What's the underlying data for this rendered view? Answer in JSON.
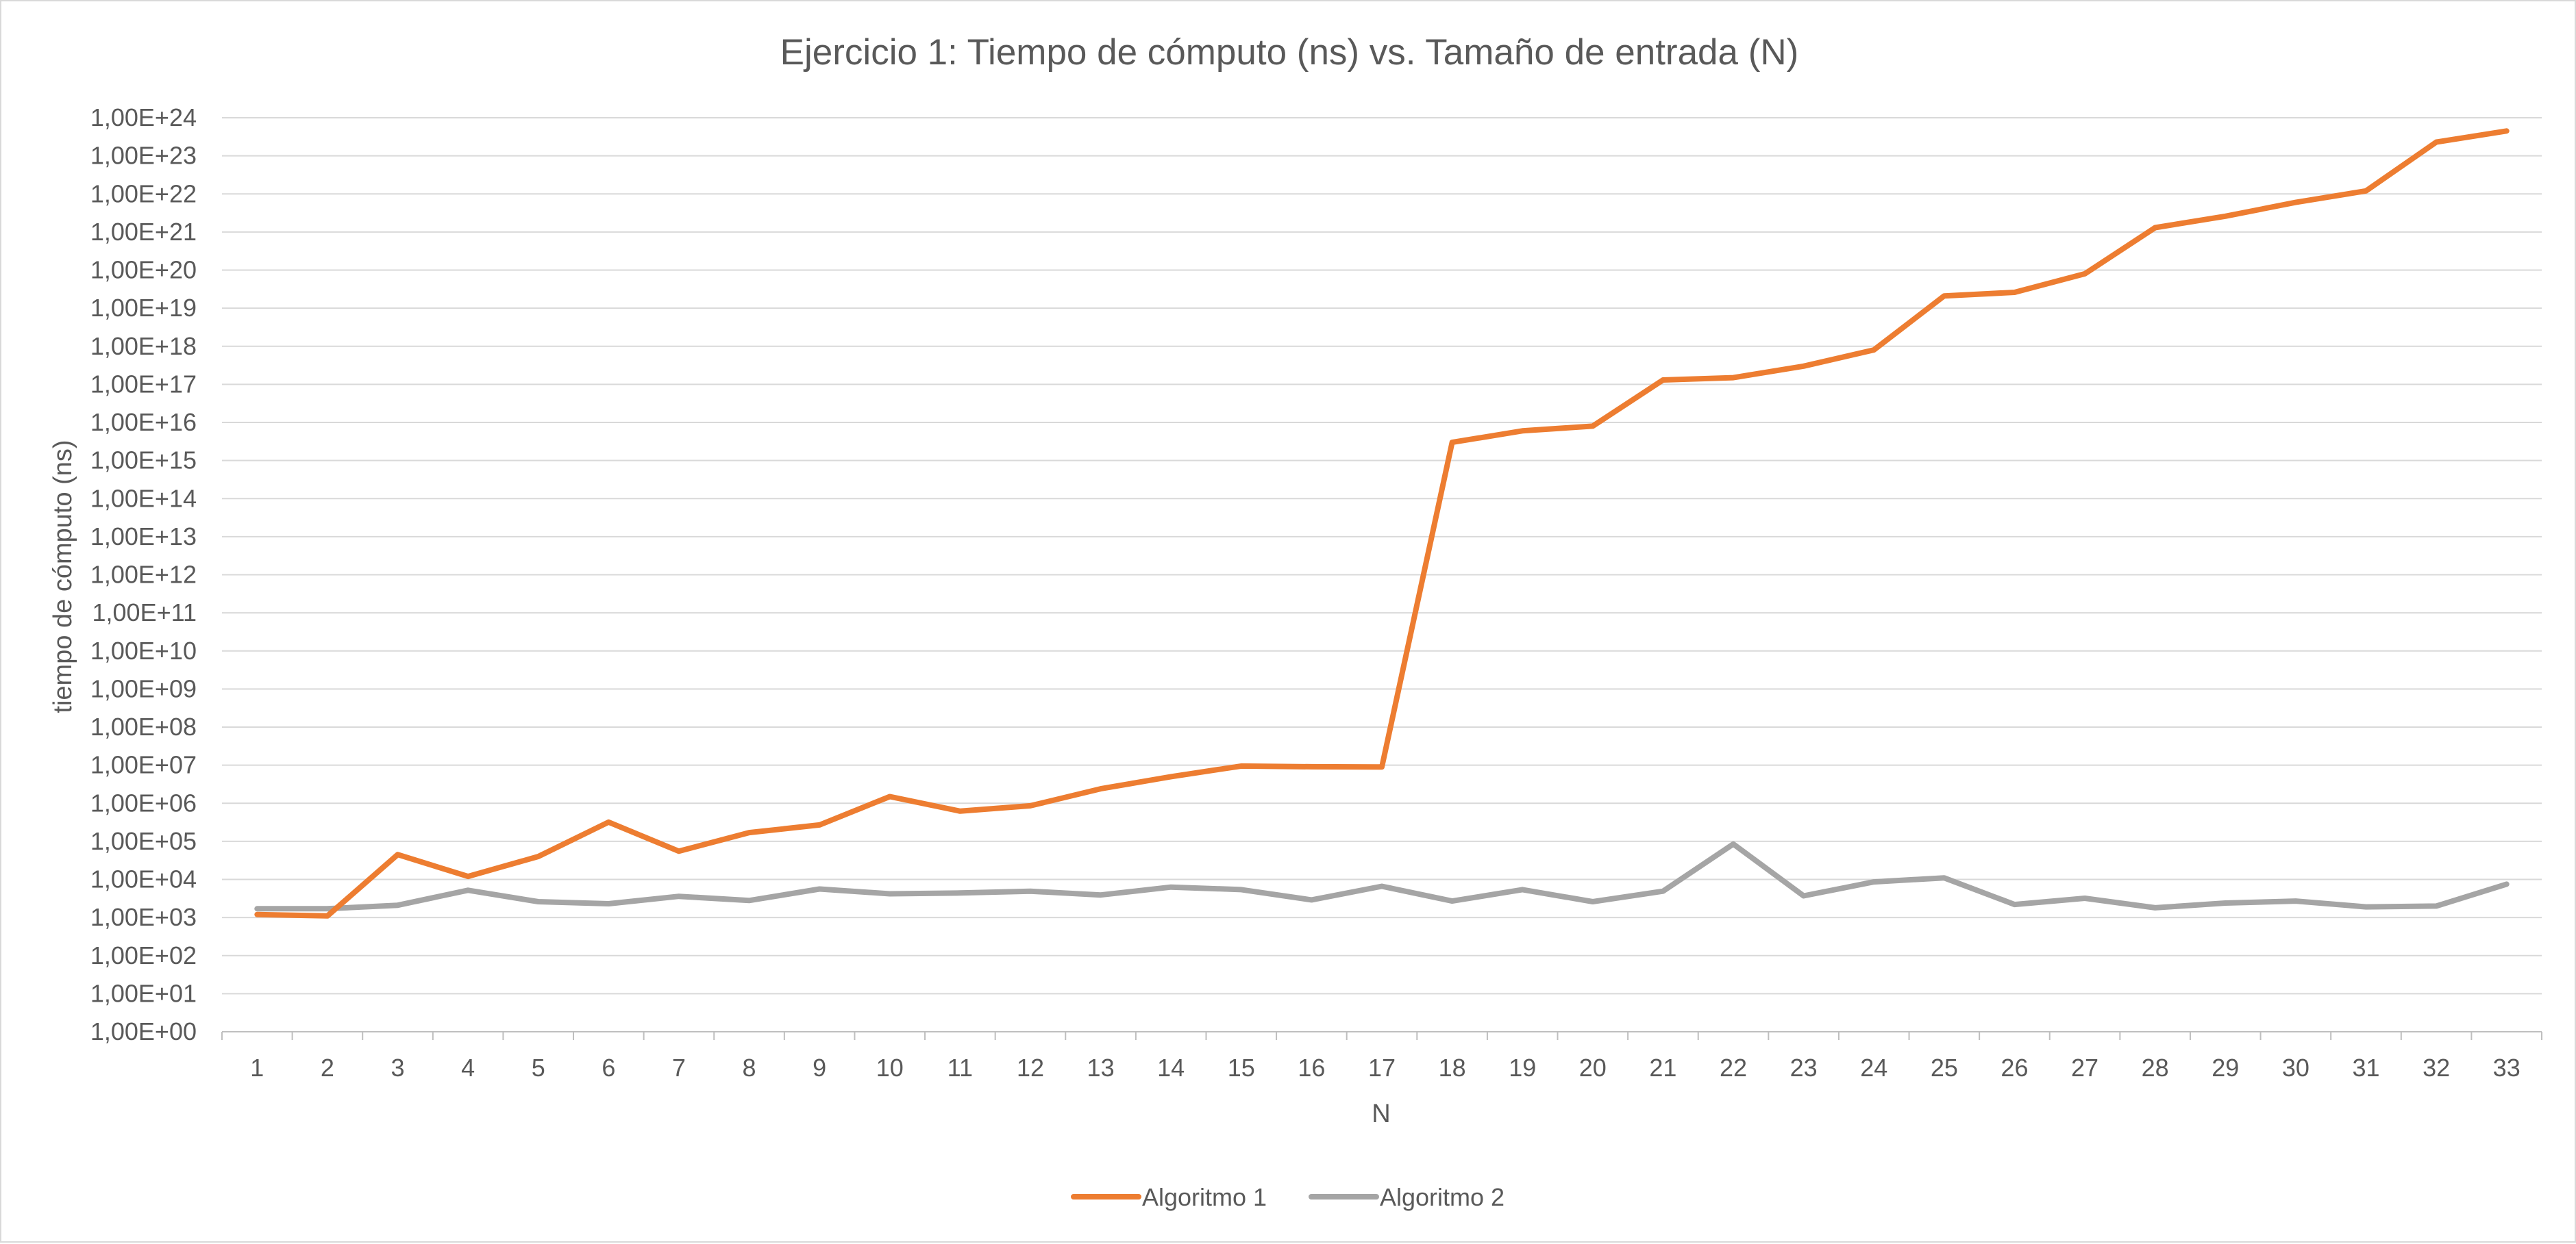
{
  "chart_data": {
    "type": "line",
    "title": "Ejercicio 1: Tiempo de cómputo (ns) vs. Tamaño de entrada (N)",
    "xlabel": "N",
    "ylabel": "tiempo de cómputo  (ns)",
    "y_scale": "log10",
    "ylim": [
      1,
      1e+24
    ],
    "grid": true,
    "legend_position": "bottom",
    "categories": [
      "1",
      "2",
      "3",
      "4",
      "5",
      "6",
      "7",
      "8",
      "9",
      "10",
      "11",
      "12",
      "13",
      "14",
      "15",
      "16",
      "17",
      "18",
      "19",
      "20",
      "21",
      "22",
      "23",
      "24",
      "25",
      "26",
      "27",
      "28",
      "29",
      "30",
      "31",
      "32",
      "33"
    ],
    "y_tick_labels": [
      "1,00E+00",
      "1,00E+01",
      "1,00E+02",
      "1,00E+03",
      "1,00E+04",
      "1,00E+05",
      "1,00E+06",
      "1,00E+07",
      "1,00E+08",
      "1,00E+09",
      "1,00E+10",
      "1,00E+11",
      "1,00E+12",
      "1,00E+13",
      "1,00E+14",
      "1,00E+15",
      "1,00E+16",
      "1,00E+17",
      "1,00E+18",
      "1,00E+19",
      "1,00E+20",
      "1,00E+21",
      "1,00E+22",
      "1,00E+23",
      "1,00E+24"
    ],
    "series": [
      {
        "name": "Algoritmo 1",
        "color": "#ED7D31",
        "values": [
          1200,
          1100,
          45000,
          12000,
          40000,
          320000,
          55000,
          170000,
          270000,
          1500000,
          620000,
          860000,
          2400000,
          5000000,
          9500000,
          9100000,
          9000000,
          3000000000000000.0,
          6000000000000000.0,
          8000000000000000.0,
          1.3e+17,
          1.5e+17,
          3e+17,
          8e+17,
          2.1e+19,
          2.6e+19,
          8e+19,
          1.3e+21,
          2.6e+21,
          6e+21,
          1.2e+22,
          2.3e+23,
          4.5e+23
        ]
      },
      {
        "name": "Algoritmo 2",
        "color": "#A5A5A5",
        "values": [
          1700,
          1700,
          2100,
          5200,
          2600,
          2300,
          3600,
          2800,
          5600,
          4200,
          4400,
          4900,
          3900,
          6300,
          5400,
          2900,
          6600,
          2700,
          5400,
          2600,
          4900,
          85000,
          3700,
          8600,
          11000,
          2200,
          3200,
          1800,
          2400,
          2700,
          1900,
          2000,
          7500
        ]
      }
    ]
  }
}
